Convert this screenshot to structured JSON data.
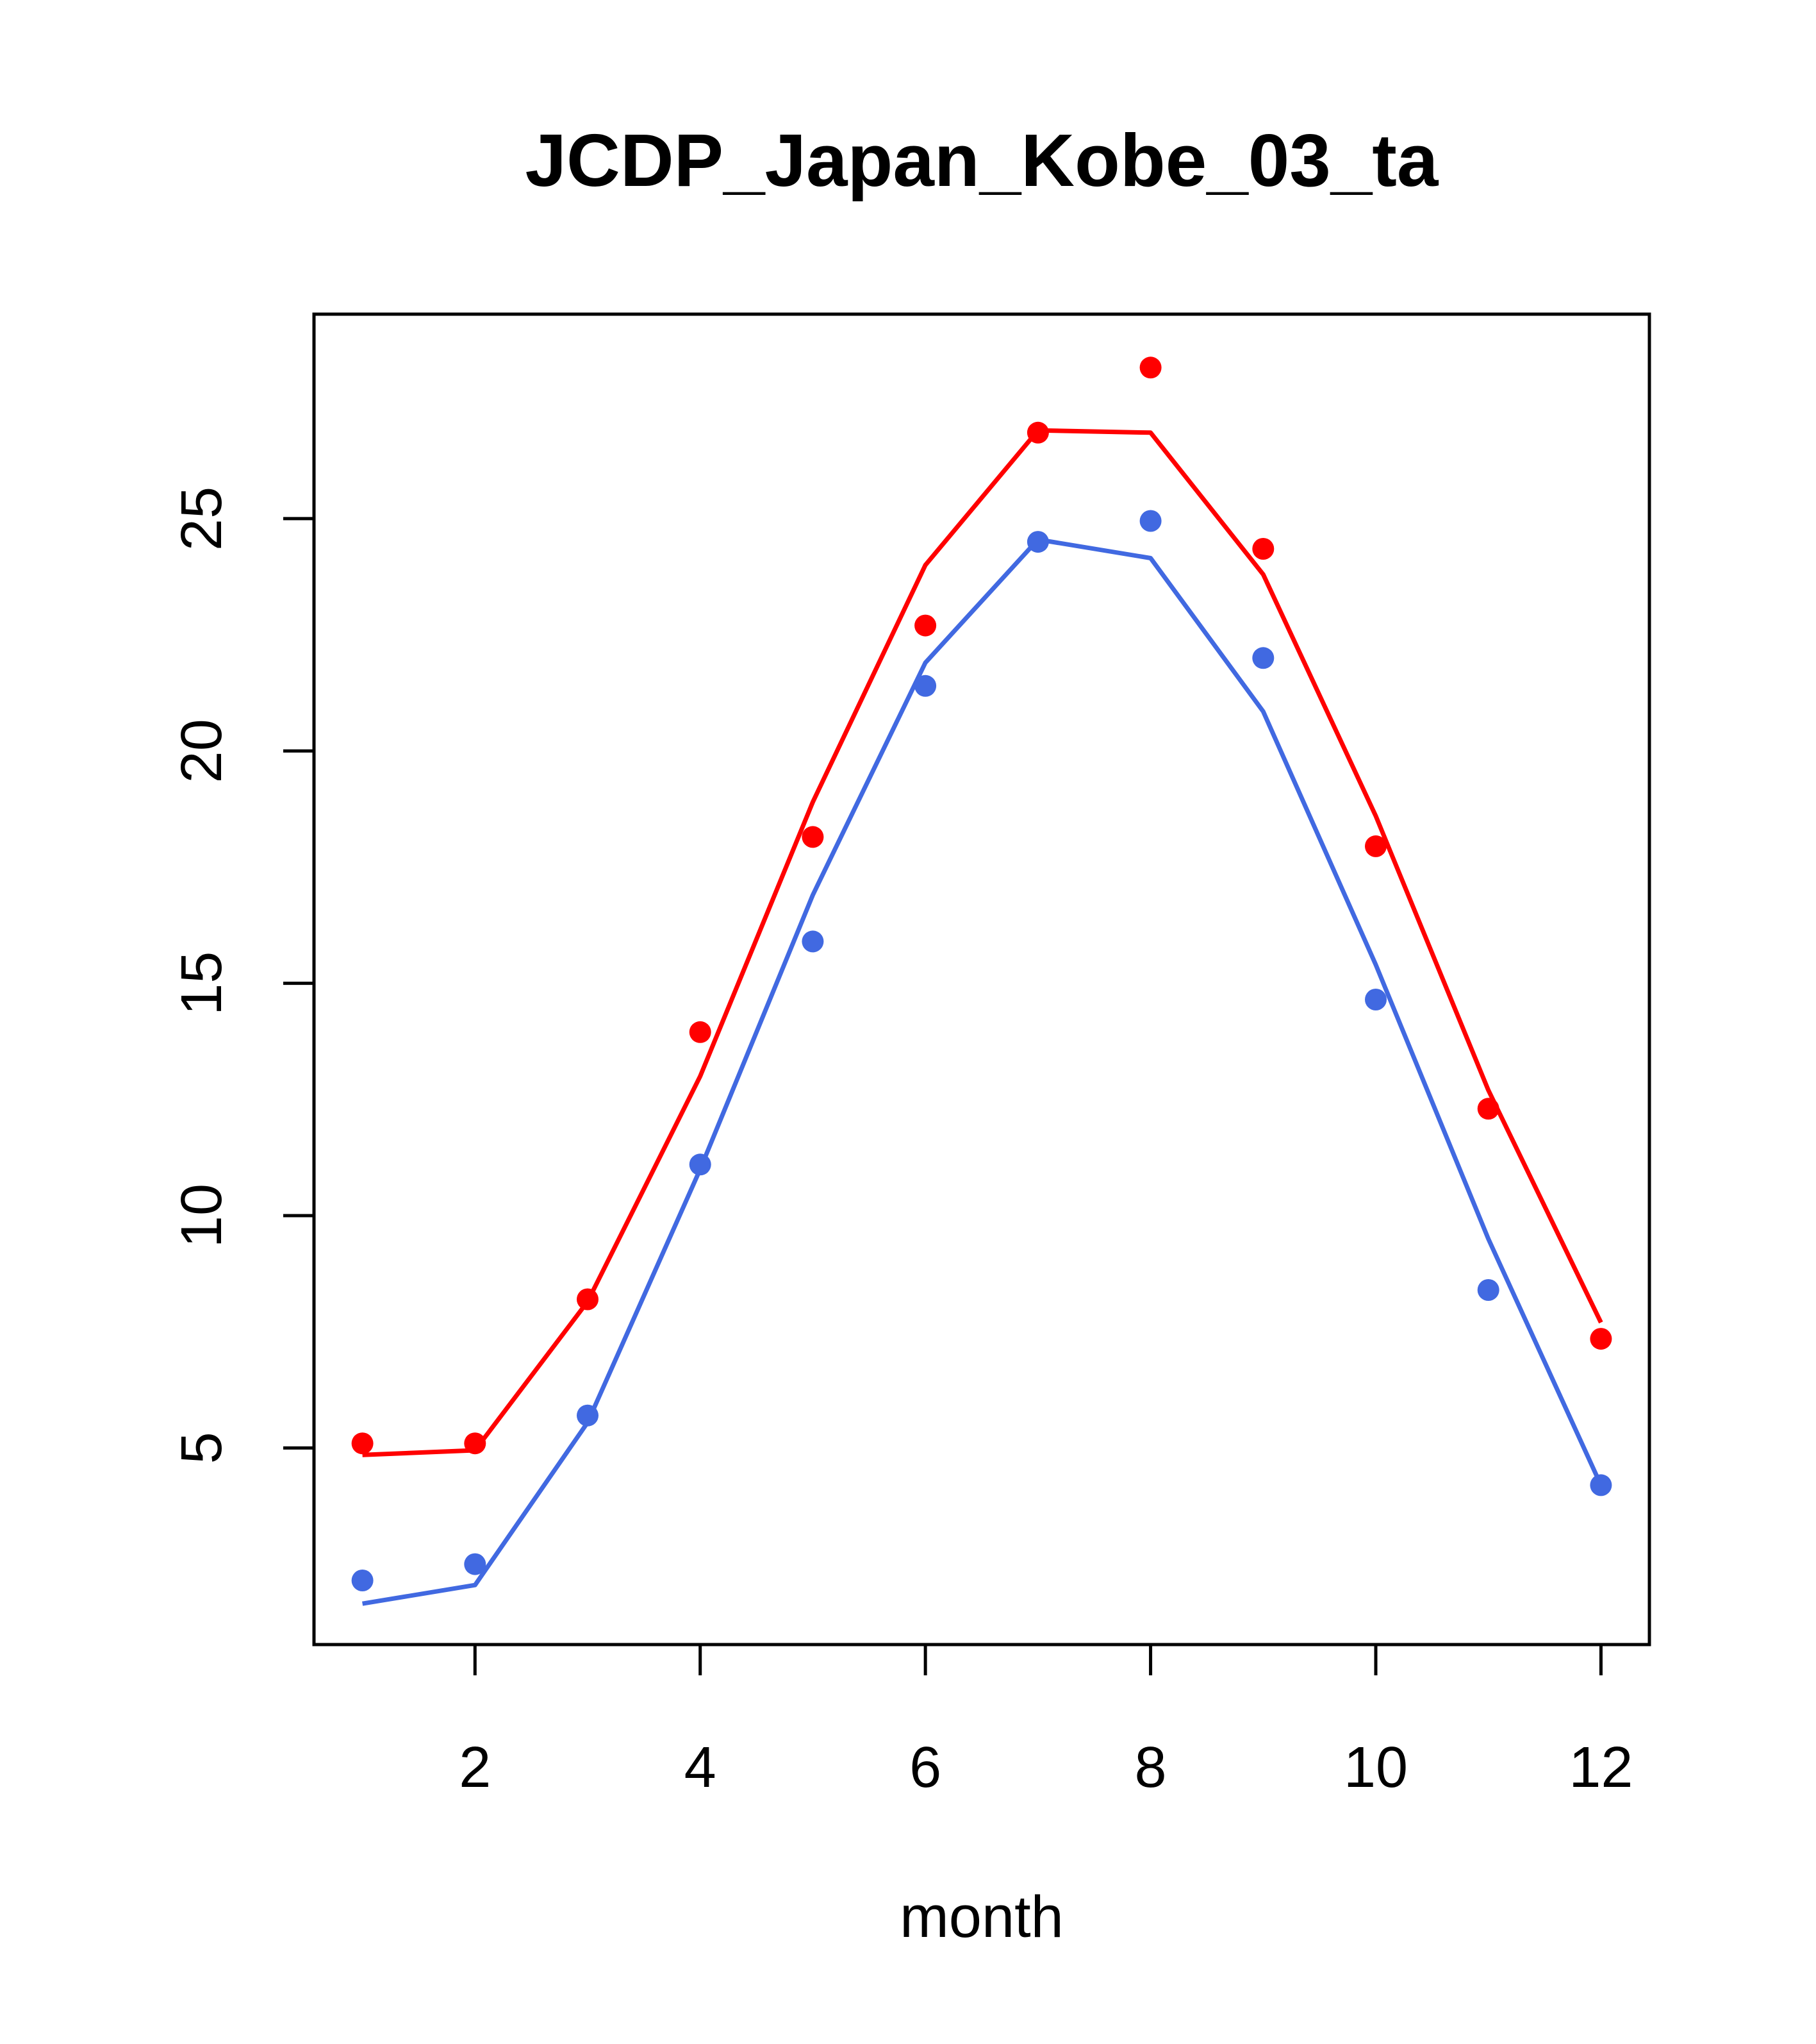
{
  "chart_data": {
    "type": "line",
    "title": "JCDP_Japan_Kobe_03_ta",
    "xlabel": "month",
    "ylabel": "",
    "xlim": [
      0.57,
      12.43
    ],
    "ylim": [
      0.77,
      29.4
    ],
    "x_ticks": [
      2,
      4,
      6,
      8,
      10,
      12
    ],
    "y_ticks": [
      5,
      10,
      15,
      20,
      25
    ],
    "x_tick_labels": [
      "2",
      "4",
      "6",
      "8",
      "10",
      "12"
    ],
    "y_tick_labels": [
      "5",
      "10",
      "15",
      "20",
      "25"
    ],
    "grid": false,
    "legend": "none",
    "x": [
      1,
      2,
      3,
      4,
      5,
      6,
      7,
      8,
      9,
      10,
      11,
      12
    ],
    "series": [
      {
        "color": "#ff0000",
        "lines": [
          4.85,
          4.95,
          8.15,
          13.0,
          18.9,
          24.0,
          26.9,
          26.85,
          23.8,
          18.6,
          12.7,
          7.7
        ],
        "points": [
          5.1,
          5.1,
          8.2,
          13.95,
          18.15,
          22.7,
          26.85,
          28.25,
          24.35,
          17.95,
          12.3,
          7.35
        ]
      },
      {
        "color": "#4169e1",
        "lines": [
          1.65,
          2.05,
          5.55,
          11.0,
          16.9,
          21.9,
          24.55,
          24.15,
          20.85,
          15.4,
          9.5,
          4.2
        ],
        "points": [
          2.15,
          2.5,
          5.7,
          11.1,
          15.9,
          21.4,
          24.5,
          24.95,
          22.0,
          14.65,
          8.4,
          4.2
        ]
      }
    ]
  }
}
